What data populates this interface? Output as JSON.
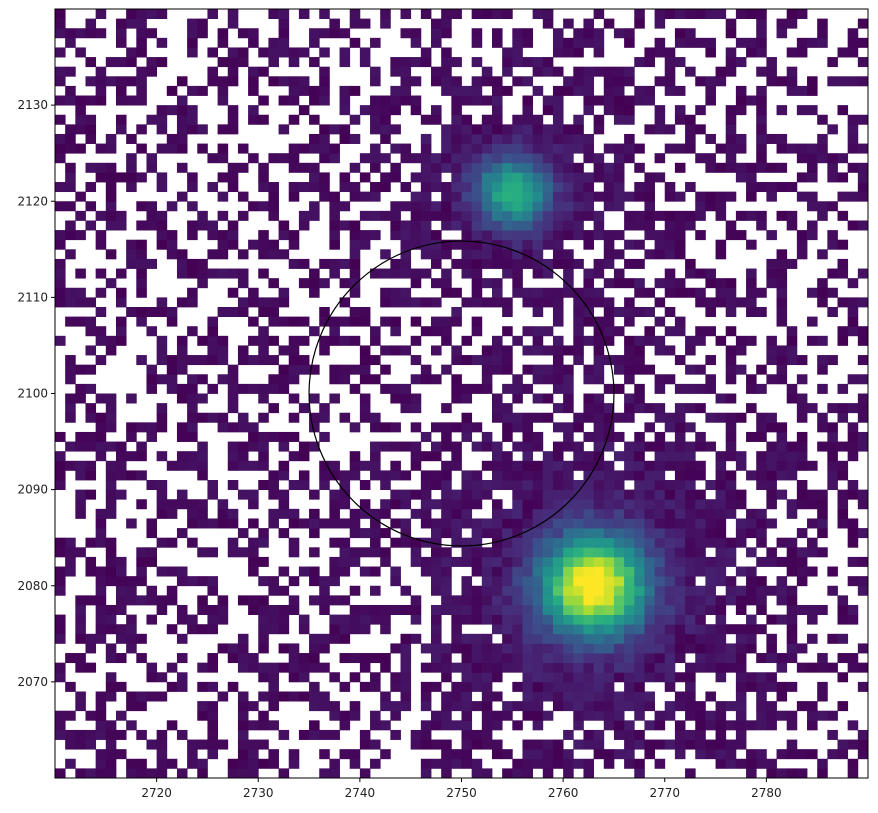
{
  "chart_data": {
    "type": "heatmap",
    "colormap": "viridis",
    "xlim": [
      2710,
      2790
    ],
    "ylim": [
      2060,
      2140
    ],
    "xticks": [
      2720,
      2730,
      2740,
      2750,
      2760,
      2770,
      2780
    ],
    "yticks": [
      2070,
      2080,
      2090,
      2100,
      2110,
      2120,
      2130
    ],
    "xtick_labels": [
      "2720",
      "2730",
      "2740",
      "2750",
      "2760",
      "2770",
      "2780"
    ],
    "ytick_labels": [
      "2070",
      "2080",
      "2090",
      "2100",
      "2110",
      "2120",
      "2130"
    ],
    "background": "sparse noise pixels (about half masked / blank)",
    "sources": [
      {
        "x": 2755,
        "y": 2121,
        "amplitude": 0.62,
        "sigma": 2.6
      },
      {
        "x": 2763,
        "y": 2080,
        "amplitude": 1.0,
        "sigma": 3.6
      }
    ],
    "aperture": {
      "x": 2750,
      "y": 2100,
      "radius": 15
    },
    "grid": false,
    "title": "",
    "xlabel": "",
    "ylabel": ""
  }
}
